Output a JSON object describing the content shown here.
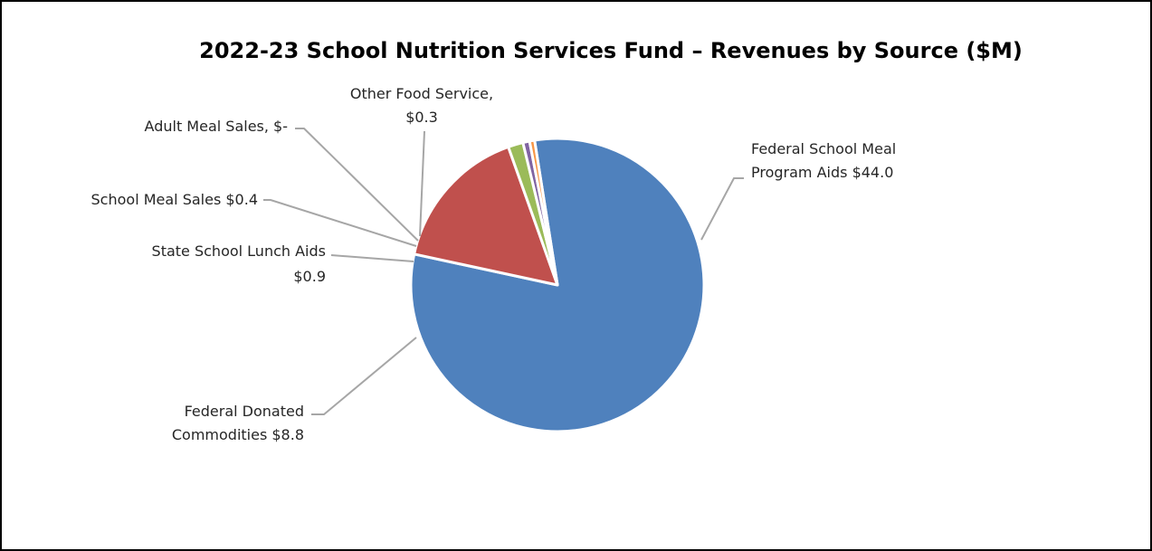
{
  "chart_data": {
    "type": "pie",
    "title": "2022-23 School Nutrition Services Fund – Revenues by Source ($M)",
    "slices": [
      {
        "key": "federal_meal",
        "label_lines": [
          "Federal School Meal",
          "Program Aids $44.0"
        ],
        "value": 44.0,
        "color": "#4f81bd"
      },
      {
        "key": "donated",
        "label_lines": [
          "Federal Donated",
          "Commodities  $8.8"
        ],
        "value": 8.8,
        "color": "#c0504d"
      },
      {
        "key": "state_lunch",
        "label_lines": [
          "State School Lunch Aids",
          "$0.9"
        ],
        "value": 0.9,
        "color": "#9bbb59"
      },
      {
        "key": "school_sales",
        "label_lines": [
          "School Meal Sales  $0.4"
        ],
        "value": 0.4,
        "color": "#8064a2"
      },
      {
        "key": "adult_sales",
        "label_lines": [
          "Adult Meal Sales,  $-"
        ],
        "value": 0.0,
        "color": "#4bacc6"
      },
      {
        "key": "other",
        "label_lines": [
          "Other Food Service,",
          "$0.3"
        ],
        "value": 0.3,
        "color": "#f79646"
      }
    ]
  }
}
